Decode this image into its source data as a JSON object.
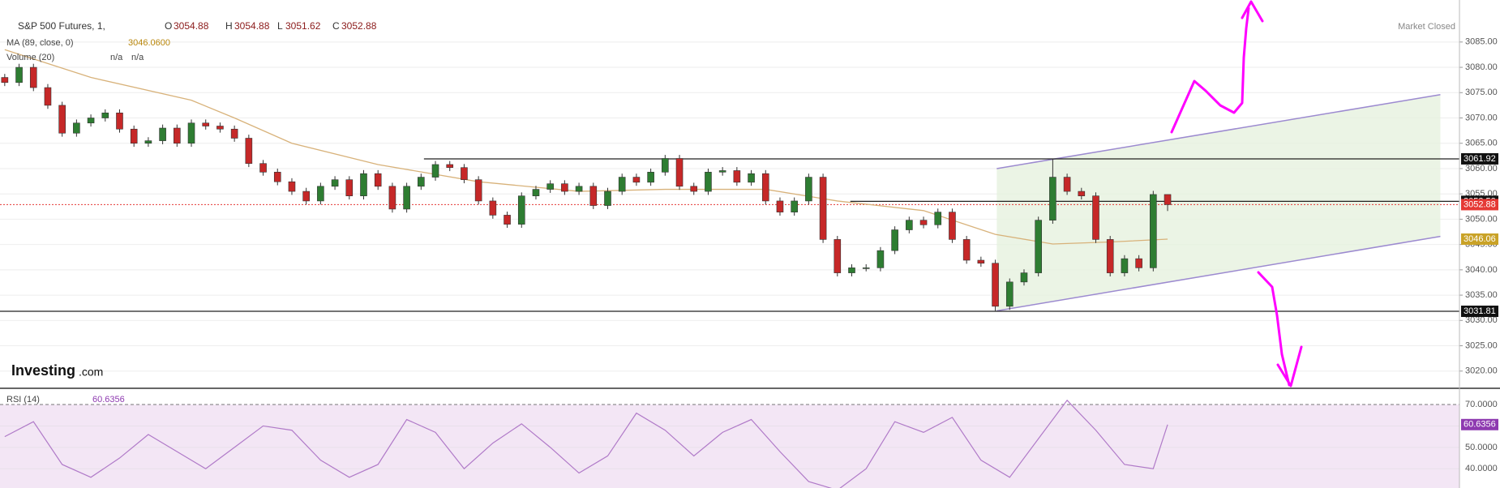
{
  "chart_data": {
    "type": "candlestick",
    "title": "S&P 500 Futures, 1,",
    "ohlc_labels": [
      "O",
      "H",
      "L",
      "C"
    ],
    "status": "Market Closed",
    "logo": {
      "brand": "Investing",
      "suffix": ".com"
    },
    "up_color": "#2e7d32",
    "down_color": "#c62828",
    "xlim": [
      -0.33,
      101.33
    ],
    "ylim": [
      3016.6,
      3093.3
    ],
    "grid": true,
    "yticks": [
      {
        "value": 3020,
        "label": "3020.00"
      },
      {
        "value": 3025,
        "label": "3025.00"
      },
      {
        "value": 3030,
        "label": "3030.00"
      },
      {
        "value": 3035,
        "label": "3035.00"
      },
      {
        "value": 3040,
        "label": "3040.00"
      },
      {
        "value": 3045,
        "label": "3045.00"
      },
      {
        "value": 3050,
        "label": "3050.00"
      },
      {
        "value": 3055,
        "label": "3055.00"
      },
      {
        "value": 3060,
        "label": "3060.00"
      },
      {
        "value": 3065,
        "label": "3065.00"
      },
      {
        "value": 3070,
        "label": "3070.00"
      },
      {
        "value": 3075,
        "label": "3075.00"
      },
      {
        "value": 3080,
        "label": "3080.00"
      },
      {
        "value": 3085,
        "label": "3085.00"
      }
    ],
    "ohlc": [
      [
        3078,
        3078.7,
        3076.3,
        3077
      ],
      [
        3077,
        3080.7,
        3076.3,
        3080
      ],
      [
        3080,
        3080.7,
        3075.3,
        3076
      ],
      [
        3076,
        3076.7,
        3071.8,
        3072.5
      ],
      [
        3072.5,
        3073.2,
        3066.3,
        3067
      ],
      [
        3067,
        3069.7,
        3066.3,
        3069
      ],
      [
        3069,
        3070.7,
        3068.3,
        3070
      ],
      [
        3070,
        3071.7,
        3069.3,
        3071
      ],
      [
        3071,
        3071.7,
        3067.1,
        3067.8
      ],
      [
        3067.8,
        3068.5,
        3064.3,
        3065
      ],
      [
        3065,
        3066.2,
        3064.3,
        3065.5
      ],
      [
        3065.5,
        3068.7,
        3064.8,
        3068
      ],
      [
        3068,
        3068.7,
        3064.3,
        3065
      ],
      [
        3065,
        3069.7,
        3064.3,
        3069
      ],
      [
        3069,
        3069.7,
        3067.7,
        3068.4
      ],
      [
        3068.4,
        3069.1,
        3067.1,
        3067.8
      ],
      [
        3067.8,
        3068.5,
        3065.3,
        3066
      ],
      [
        3066,
        3066.7,
        3060.3,
        3061
      ],
      [
        3061,
        3061.7,
        3058.6,
        3059.3
      ],
      [
        3059.3,
        3060,
        3056.7,
        3057.4
      ],
      [
        3057.4,
        3058.1,
        3054.8,
        3055.5
      ],
      [
        3055.5,
        3056.2,
        3052.9,
        3053.6
      ],
      [
        3053.6,
        3057.2,
        3052.9,
        3056.5
      ],
      [
        3056.5,
        3058.5,
        3055.8,
        3057.8
      ],
      [
        3057.8,
        3058.5,
        3053.9,
        3054.6
      ],
      [
        3054.6,
        3059.7,
        3053.9,
        3059
      ],
      [
        3059,
        3059.7,
        3055.8,
        3056.5
      ],
      [
        3056.5,
        3057.2,
        3051.3,
        3052
      ],
      [
        3052,
        3057.2,
        3051.3,
        3056.5
      ],
      [
        3056.5,
        3059,
        3055.8,
        3058.3
      ],
      [
        3058.3,
        3061.5,
        3057.6,
        3060.8
      ],
      [
        3060.8,
        3061.5,
        3059.5,
        3060.2
      ],
      [
        3060.2,
        3060.9,
        3057.1,
        3057.8
      ],
      [
        3057.8,
        3058.5,
        3052.9,
        3053.6
      ],
      [
        3053.6,
        3054.3,
        3050.1,
        3050.8
      ],
      [
        3050.8,
        3051.5,
        3048.3,
        3049
      ],
      [
        3049,
        3055.3,
        3048.3,
        3054.6
      ],
      [
        3054.6,
        3056.6,
        3053.9,
        3055.9
      ],
      [
        3055.9,
        3057.7,
        3055.2,
        3057
      ],
      [
        3057,
        3057.7,
        3054.8,
        3055.5
      ],
      [
        3055.5,
        3057.2,
        3054.8,
        3056.5
      ],
      [
        3056.5,
        3057.2,
        3052,
        3052.7
      ],
      [
        3052.7,
        3056.2,
        3052,
        3055.5
      ],
      [
        3055.5,
        3059,
        3054.8,
        3058.3
      ],
      [
        3058.3,
        3059,
        3056.6,
        3057.3
      ],
      [
        3057.3,
        3060,
        3056.6,
        3059.3
      ],
      [
        3059.3,
        3062.7,
        3058.6,
        3062
      ],
      [
        3062,
        3062.7,
        3055.8,
        3056.5
      ],
      [
        3056.5,
        3057.2,
        3054.8,
        3055.5
      ],
      [
        3055.5,
        3060,
        3054.8,
        3059.3
      ],
      [
        3059.3,
        3060.3,
        3058.6,
        3059.6
      ],
      [
        3059.6,
        3060.3,
        3056.6,
        3057.3
      ],
      [
        3057.3,
        3059.7,
        3056.6,
        3059
      ],
      [
        3059,
        3059.7,
        3052.9,
        3053.6
      ],
      [
        3053.6,
        3054.3,
        3050.7,
        3051.4
      ],
      [
        3051.4,
        3054.3,
        3050.7,
        3053.6
      ],
      [
        3053.6,
        3059,
        3052.9,
        3058.3
      ],
      [
        3058.3,
        3059,
        3045.3,
        3046
      ],
      [
        3046,
        3046.7,
        3038.7,
        3039.4
      ],
      [
        3039.4,
        3041.1,
        3038.7,
        3040.4
      ],
      [
        3040.4,
        3041.1,
        3039.7,
        3040.4
      ],
      [
        3040.4,
        3044.5,
        3039.7,
        3043.8
      ],
      [
        3043.8,
        3048.6,
        3043.1,
        3047.9
      ],
      [
        3047.9,
        3050.5,
        3047.2,
        3049.8
      ],
      [
        3049.8,
        3050.5,
        3048.2,
        3048.9
      ],
      [
        3048.9,
        3052.1,
        3048.2,
        3051.4
      ],
      [
        3051.4,
        3052.1,
        3045.3,
        3046
      ],
      [
        3046,
        3046.7,
        3041.2,
        3041.9
      ],
      [
        3041.9,
        3042.6,
        3040.6,
        3041.3
      ],
      [
        3041.3,
        3042,
        3031.81,
        3032.8
      ],
      [
        3032.8,
        3038.3,
        3032.1,
        3037.6
      ],
      [
        3037.6,
        3040.1,
        3036.9,
        3039.4
      ],
      [
        3039.4,
        3050.5,
        3038.7,
        3049.8
      ],
      [
        3049.8,
        3061.92,
        3049.1,
        3058.3
      ],
      [
        3058.3,
        3059,
        3054.8,
        3055.5
      ],
      [
        3055.5,
        3056.2,
        3053.9,
        3054.6
      ],
      [
        3054.6,
        3055.3,
        3045.3,
        3046
      ],
      [
        3046,
        3046.7,
        3038.7,
        3039.4
      ],
      [
        3039.4,
        3042.9,
        3038.7,
        3042.2
      ],
      [
        3042.2,
        3042.9,
        3039.7,
        3040.4
      ],
      [
        3040.4,
        3055.6,
        3039.7,
        3054.88
      ],
      [
        3054.88,
        3054.88,
        3051.62,
        3052.88
      ]
    ],
    "ma": {
      "name": "MA (89, close, 0)",
      "legend_value": "3046.0600",
      "color": "#d8b27a",
      "x": [
        0,
        6,
        13,
        16,
        20,
        26,
        33,
        40,
        46,
        53,
        58,
        64,
        69,
        73,
        77,
        81
      ],
      "values": [
        3083.5,
        3078,
        3073.5,
        3070,
        3065,
        3060.8,
        3057.4,
        3055.5,
        3055.9,
        3055.9,
        3053.6,
        3051.7,
        3047,
        3045.1,
        3045.5,
        3046.06
      ]
    },
    "volume": {
      "name": "Volume (20)",
      "labels": [
        "n/a",
        "n/a"
      ]
    },
    "levels": [
      {
        "value": 3061.92,
        "start": 29.2
      },
      {
        "value": 3053.53,
        "start": 58.9
      },
      {
        "value": 3031.81,
        "start": -0.33
      }
    ],
    "channel": {
      "x": [
        69.1,
        100
      ],
      "lower": [
        3031.9,
        3046.6
      ],
      "upper": [
        3060,
        3074.6
      ],
      "color": "#9c8ad0"
    },
    "rsi": {
      "name": "RSI (14)",
      "color": "#b07ac8",
      "ylim": [
        31,
        77.6
      ],
      "yticks": [
        {
          "value": 40,
          "label": "40.0000"
        },
        {
          "value": 50,
          "label": "50.0000"
        },
        {
          "value": 60,
          "label": "60.0000"
        },
        {
          "value": 70,
          "label": "70.0000"
        }
      ],
      "x": [
        0,
        2,
        4,
        6,
        8,
        10,
        12,
        14,
        16,
        18,
        20,
        22,
        24,
        26,
        28,
        30,
        32,
        34,
        36,
        38,
        40,
        42,
        44,
        46,
        48,
        50,
        52,
        54,
        56,
        58,
        60,
        62,
        64,
        66,
        68,
        70,
        72,
        74,
        76,
        78,
        80,
        81
      ],
      "values": [
        55,
        62,
        42,
        36,
        45,
        56,
        48,
        40,
        50,
        60,
        58,
        44,
        36,
        42,
        63,
        57,
        40,
        52,
        61,
        50,
        38,
        46,
        66,
        58,
        46,
        57,
        63,
        48,
        34,
        30,
        40,
        62,
        57,
        64,
        44,
        36,
        54,
        72,
        58,
        42,
        40,
        60.6356
      ]
    }
  }
}
